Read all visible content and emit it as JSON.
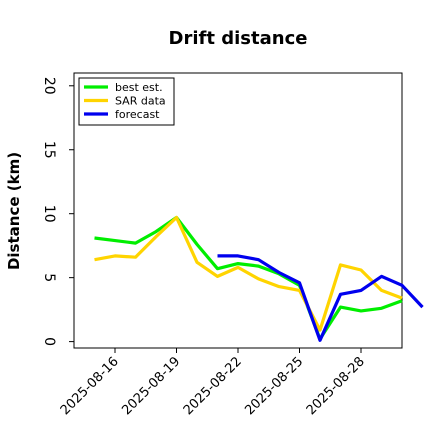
{
  "chart_data": {
    "type": "line",
    "title": "Drift distance",
    "xlabel": "",
    "ylabel": "Distance (km)",
    "ylim": [
      -0.5,
      21
    ],
    "yticks": [
      0,
      5,
      10,
      15,
      20
    ],
    "xlim": [
      "2025-08-14",
      "2025-08-30"
    ],
    "xticks": [
      "2025-08-16",
      "2025-08-19",
      "2025-08-22",
      "2025-08-25",
      "2025-08-28"
    ],
    "grid": false,
    "legend_position": "top-left",
    "series": [
      {
        "name": "best est.",
        "color": "#00ee00",
        "x": [
          "2025-08-15T00:00",
          "2025-08-16T00:00",
          "2025-08-17T00:00",
          "2025-08-18T00:00",
          "2025-08-19T00:00",
          "2025-08-20T00:00",
          "2025-08-21T00:00",
          "2025-08-22T00:00",
          "2025-08-23T00:00",
          "2025-08-24T00:00",
          "2025-08-25T00:00",
          "2025-08-26T00:00",
          "2025-08-27T00:00",
          "2025-08-28T00:00",
          "2025-08-29T00:00",
          "2025-08-30T00:00"
        ],
        "values": [
          8.1,
          7.9,
          7.7,
          8.6,
          9.7,
          7.6,
          5.7,
          6.1,
          5.9,
          5.3,
          4.4,
          0.2,
          2.7,
          2.4,
          2.6,
          3.2
        ]
      },
      {
        "name": "SAR data",
        "color": "#ffd400",
        "x": [
          "2025-08-15T00:00",
          "2025-08-16T00:00",
          "2025-08-17T00:00",
          "2025-08-18T00:00",
          "2025-08-19T00:00",
          "2025-08-20T00:00",
          "2025-08-21T00:00",
          "2025-08-22T00:00",
          "2025-08-23T00:00",
          "2025-08-24T00:00",
          "2025-08-25T00:00",
          "2025-08-26T00:00",
          "2025-08-27T00:00",
          "2025-08-28T00:00",
          "2025-08-29T00:00",
          "2025-08-30T00:00"
        ],
        "values": [
          6.4,
          6.7,
          6.6,
          8.2,
          9.7,
          6.2,
          5.1,
          5.8,
          4.9,
          4.3,
          4.0,
          0.9,
          6.0,
          5.6,
          4.0,
          3.4
        ]
      },
      {
        "name": "forecast",
        "color": "#0000ee",
        "x": [
          "2025-08-21T00:00",
          "2025-08-22T00:00",
          "2025-08-23T00:00",
          "2025-08-24T00:00",
          "2025-08-25T00:00",
          "2025-08-26T00:00",
          "2025-08-27T00:00",
          "2025-08-28T00:00",
          "2025-08-29T00:00",
          "2025-08-30T00:00",
          "2025-08-31T00:00"
        ],
        "values": [
          6.7,
          6.7,
          6.4,
          5.4,
          4.6,
          0.1,
          3.7,
          4.0,
          5.1,
          4.4,
          2.7
        ]
      }
    ]
  }
}
